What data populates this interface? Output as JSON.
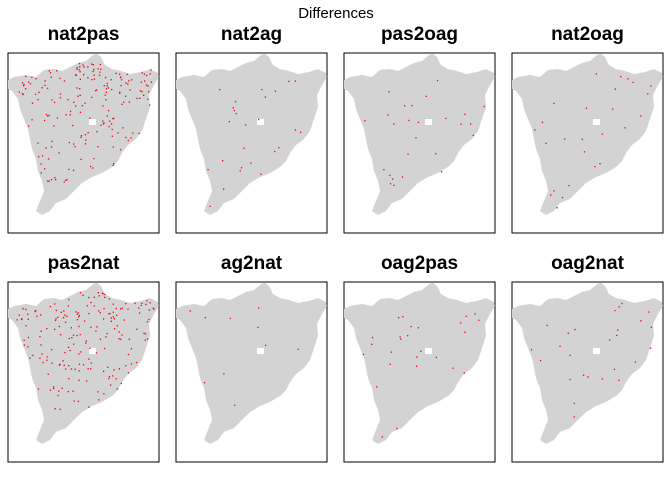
{
  "chart_data": {
    "type": "scatter",
    "title": "Differences",
    "panels": [
      {
        "name": "nat2pas",
        "density": "high"
      },
      {
        "name": "nat2ag",
        "density": "low"
      },
      {
        "name": "pas2oag",
        "density": "low"
      },
      {
        "name": "nat2oag",
        "density": "low"
      },
      {
        "name": "pas2nat",
        "density": "high"
      },
      {
        "name": "ag2nat",
        "density": "very-low"
      },
      {
        "name": "oag2pas",
        "density": "low"
      },
      {
        "name": "oag2nat",
        "density": "low"
      }
    ],
    "colors": {
      "region": "#d3d3d3",
      "points": "#e8000b",
      "frame": "#000000",
      "background": "#ffffff"
    }
  }
}
